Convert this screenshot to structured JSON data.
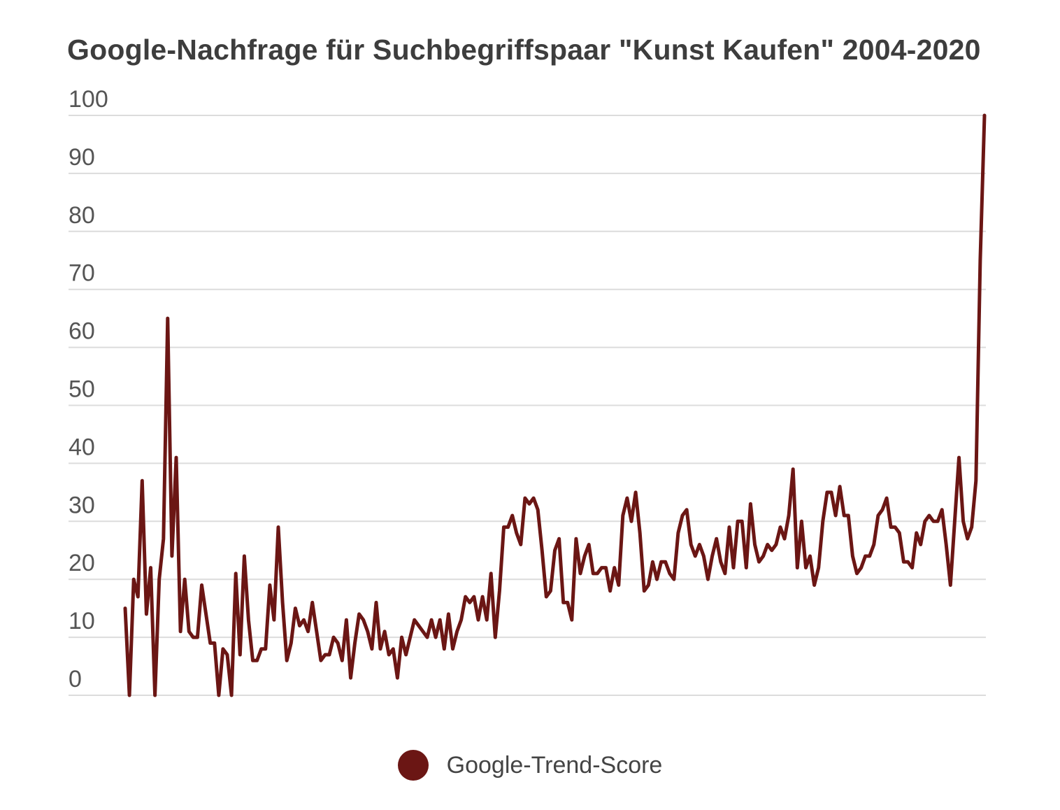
{
  "chart_data": {
    "type": "line",
    "title": "Google-Nachfrage für Suchbegriffspaar \"Kunst Kaufen\" 2004-2020",
    "xlabel": "",
    "ylabel": "",
    "ylim": [
      0,
      100
    ],
    "yticks": [
      "0",
      "10",
      "20",
      "30",
      "40",
      "50",
      "60",
      "70",
      "80",
      "90",
      "100"
    ],
    "grid": true,
    "legend_position": "bottom-center",
    "series": [
      {
        "name": "Google-Trend-Score",
        "color": "#6b1614",
        "values": [
          15,
          0,
          20,
          17,
          37,
          14,
          22,
          0,
          20,
          27,
          65,
          24,
          41,
          11,
          20,
          11,
          10,
          10,
          19,
          14,
          9,
          9,
          0,
          8,
          7,
          0,
          21,
          7,
          24,
          13,
          6,
          6,
          8,
          8,
          19,
          13,
          29,
          16,
          6,
          9,
          15,
          12,
          13,
          11,
          16,
          11,
          6,
          7,
          7,
          10,
          9,
          6,
          13,
          3,
          9,
          14,
          13,
          11,
          8,
          16,
          8,
          11,
          7,
          8,
          3,
          10,
          7,
          10,
          13,
          12,
          11,
          10,
          13,
          10,
          13,
          8,
          14,
          8,
          11,
          13,
          17,
          16,
          17,
          13,
          17,
          13,
          21,
          10,
          18,
          29,
          29,
          31,
          28,
          26,
          34,
          33,
          34,
          32,
          25,
          17,
          18,
          25,
          27,
          16,
          16,
          13,
          27,
          21,
          24,
          26,
          21,
          21,
          22,
          22,
          18,
          22,
          19,
          31,
          34,
          30,
          35,
          28,
          18,
          19,
          23,
          20,
          23,
          23,
          21,
          20,
          28,
          31,
          32,
          26,
          24,
          26,
          24,
          20,
          24,
          27,
          23,
          21,
          29,
          22,
          30,
          30,
          22,
          33,
          26,
          23,
          24,
          26,
          25,
          26,
          29,
          27,
          31,
          39,
          22,
          30,
          22,
          24,
          19,
          22,
          30,
          35,
          35,
          31,
          36,
          31,
          31,
          24,
          21,
          22,
          24,
          24,
          26,
          31,
          32,
          34,
          29,
          29,
          28,
          23,
          23,
          22,
          28,
          26,
          30,
          31,
          30,
          30,
          32,
          26,
          19,
          30,
          41,
          30,
          27,
          29,
          37,
          75,
          100
        ]
      }
    ]
  }
}
